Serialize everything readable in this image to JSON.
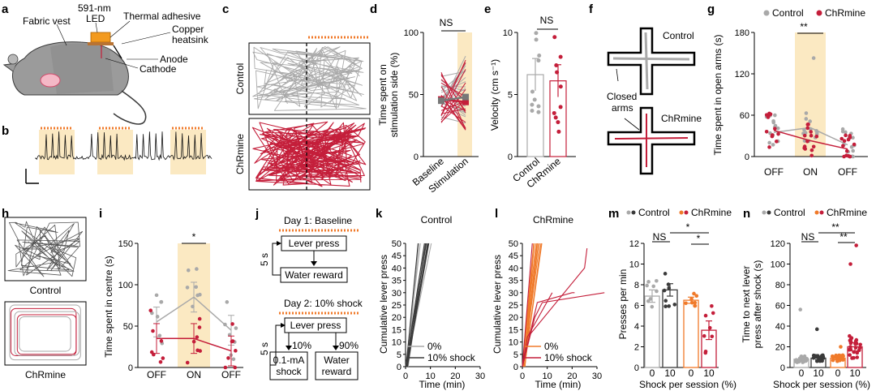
{
  "colors": {
    "control": "#a9a9a9",
    "chrmine": "#c41e3a",
    "stim_shade": "#fbe9c2",
    "dark": "#3a3a3a",
    "orange": "#f07a2a",
    "led": "#f39a1e"
  },
  "panel_labels": [
    "a",
    "b",
    "c",
    "d",
    "e",
    "f",
    "g",
    "h",
    "i",
    "j",
    "k",
    "l",
    "m",
    "n"
  ],
  "a": {
    "labels": [
      "591-nm",
      "LED",
      "Thermal adhesive",
      "Fabric vest",
      "Copper",
      "heatsink",
      "Anode",
      "Cathode"
    ]
  },
  "c": {
    "row_labels": [
      "Control",
      "ChRmine"
    ]
  },
  "d": {
    "ylabel_1": "Time spent on",
    "ylabel_2": "stimulation side (%)",
    "sig": "NS",
    "categories": [
      "Baseline",
      "Stimulation"
    ]
  },
  "e": {
    "ylabel": "Velocity (cm s⁻¹)",
    "sig": "NS",
    "categories": [
      "Control",
      "ChRmine"
    ]
  },
  "f": {
    "labels": [
      "Control",
      "ChRmine",
      "Closed",
      "arms"
    ]
  },
  "g": {
    "legend": [
      "Control",
      "ChRmine"
    ],
    "ylabel": "Time spent in open arms (s)",
    "sig": "**",
    "categories": [
      "OFF",
      "ON",
      "OFF"
    ]
  },
  "h": {
    "labels": [
      "Control",
      "ChRmine"
    ]
  },
  "i": {
    "ylabel": "Time spent in centre (s)",
    "sig": "*",
    "categories": [
      "OFF",
      "ON",
      "OFF"
    ]
  },
  "j": {
    "day1": "Day 1: Baseline",
    "lever": "Lever press",
    "water": "Water reward",
    "day2": "Day 2: 10% shock",
    "lever2": "Lever press",
    "pct10": "10%",
    "pct90": "90%",
    "shock_1": "0.1-mA",
    "shock_2": "shock",
    "water2_1": "Water",
    "water2_2": "reward",
    "delay1": "5 s",
    "delay2": "5 s"
  },
  "k": {
    "title": "Control",
    "ylabel": "Cumulative lever press",
    "xlabel": "Time (min)",
    "legend": [
      "0%",
      "10% shock"
    ]
  },
  "l": {
    "title": "ChRmine",
    "ylabel": "Cumulative lever press",
    "xlabel": "Time (min)",
    "legend": [
      "0%",
      "10% shock"
    ]
  },
  "m": {
    "legend": [
      "Control",
      "ChRmine"
    ],
    "ylabel": "Presses per min",
    "xlabel": "Shock per session (%)",
    "sigs": [
      "NS",
      "*",
      "*"
    ],
    "categories": [
      "0",
      "10",
      "0",
      "10"
    ]
  },
  "n": {
    "legend": [
      "Control",
      "ChRmine"
    ],
    "ylabel_1": "Time to next lever",
    "ylabel_2": "press after shock (s)",
    "xlabel": "Shock per session (%)",
    "sigs": [
      "NS",
      "**",
      "**"
    ],
    "categories": [
      "0",
      "10",
      "0",
      "10"
    ]
  },
  "chart_data": [
    {
      "panel": "d",
      "type": "line",
      "x": [
        "Baseline",
        "Stimulation"
      ],
      "ylim": [
        0,
        100
      ],
      "yticks": [
        0,
        50,
        100
      ],
      "series": [
        {
          "values": [
            46,
            44
          ]
        },
        {
          "values": [
            45,
            48
          ]
        }
      ]
    },
    {
      "panel": "e",
      "type": "bar",
      "categories": [
        "Control",
        "ChRmine"
      ],
      "values": [
        6.6,
        6.1
      ],
      "errors": [
        1.3,
        1.3
      ],
      "ylim": [
        0,
        10
      ],
      "yticks": [
        0,
        5,
        10
      ]
    },
    {
      "panel": "g",
      "type": "line",
      "x": [
        "OFF",
        "ON",
        "OFF"
      ],
      "ylim": [
        0,
        180
      ],
      "yticks": [
        0,
        60,
        120,
        180
      ],
      "series": [
        {
          "name": "Control",
          "values": [
            35,
            42,
            17
          ]
        },
        {
          "name": "ChRmine",
          "values": [
            38,
            23,
            11
          ]
        }
      ]
    },
    {
      "panel": "i",
      "type": "line",
      "x": [
        "OFF",
        "ON",
        "OFF"
      ],
      "ylim": [
        0,
        150
      ],
      "yticks": [
        0,
        50,
        100,
        150
      ],
      "series": [
        {
          "values": [
            55,
            85,
            45
          ]
        },
        {
          "values": [
            35,
            35,
            20
          ]
        }
      ]
    },
    {
      "panel": "k",
      "type": "line",
      "xlim": [
        0,
        30
      ],
      "ylim": [
        0,
        50
      ],
      "xticks": [
        0,
        10,
        20,
        30
      ],
      "yticks": [
        0,
        5,
        10,
        15,
        20,
        25,
        30,
        35,
        40,
        45,
        50
      ]
    },
    {
      "panel": "l",
      "type": "line",
      "xlim": [
        0,
        30
      ],
      "ylim": [
        0,
        50
      ],
      "xticks": [
        0,
        10,
        20,
        30
      ],
      "yticks": [
        0,
        5,
        10,
        15,
        20,
        25,
        30,
        35,
        40,
        45,
        50
      ]
    },
    {
      "panel": "m",
      "type": "bar",
      "categories": [
        "0",
        "10",
        "0",
        "10"
      ],
      "values": [
        6.9,
        7.5,
        6.5,
        3.6
      ],
      "errors": [
        0.6,
        0.6,
        0.3,
        0.9
      ],
      "ylim": [
        0,
        12
      ],
      "yticks": [
        0,
        2,
        4,
        6,
        8,
        10,
        12
      ]
    },
    {
      "panel": "n",
      "type": "bar",
      "categories": [
        "0",
        "10",
        "0",
        "10"
      ],
      "values": [
        8,
        9,
        9,
        20
      ],
      "errors": [
        1.5,
        1.5,
        1.5,
        4
      ],
      "ylim": [
        0,
        120
      ],
      "yticks": [
        0,
        20,
        40,
        60,
        80,
        100,
        120
      ]
    }
  ]
}
